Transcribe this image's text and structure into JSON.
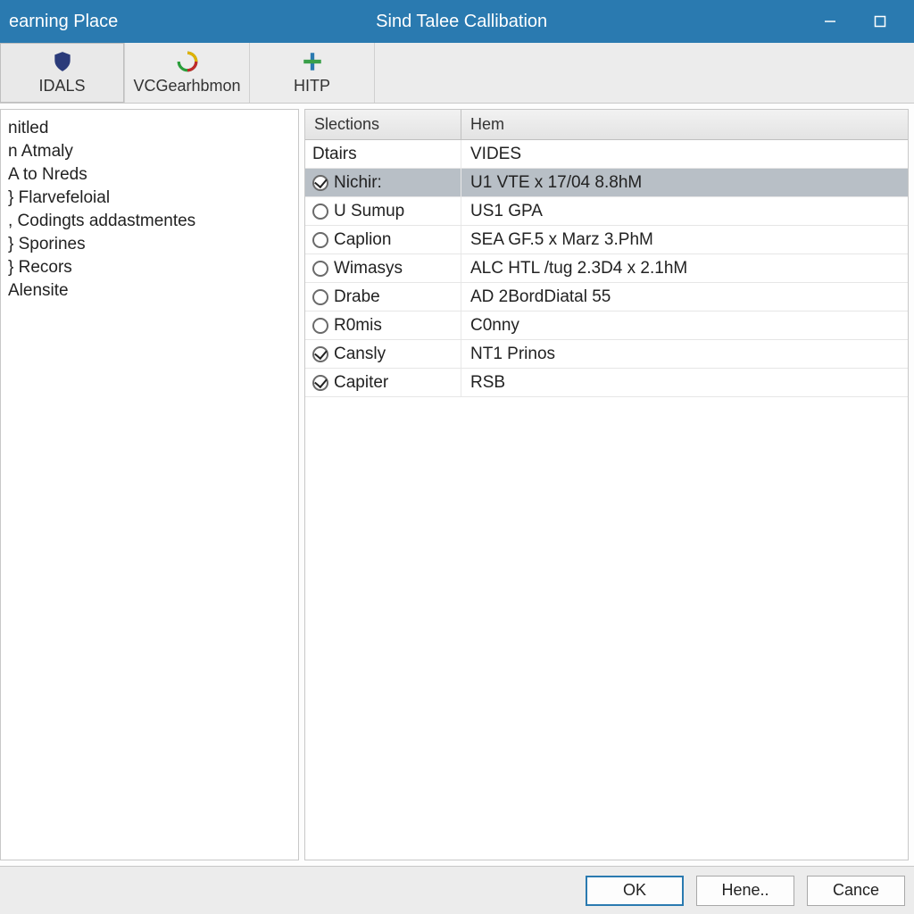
{
  "titlebar": {
    "left": "earning Place",
    "center": "Sind Talee Callibation"
  },
  "toolbar": {
    "tabs": [
      {
        "label": "IDALS",
        "active": true
      },
      {
        "label": "VCGearhbmon",
        "active": false
      },
      {
        "label": "HITP",
        "active": false
      }
    ]
  },
  "sidebar": {
    "items": [
      "nitled",
      "n Atmaly",
      "A to Nreds",
      "} Flarvefeloial",
      ", Codingts addastmentes",
      "} Sporines",
      "} Recors",
      "Alensite"
    ]
  },
  "grid": {
    "headers": {
      "c1": "Slections",
      "c2": "Hem"
    },
    "rows": [
      {
        "sel": "none",
        "c1": "Dtairs",
        "c2": "VIDES",
        "selected": false
      },
      {
        "sel": "checked",
        "c1": "Nichir:",
        "c2": "U1 VTE x 17/04 8.8hM",
        "selected": true
      },
      {
        "sel": "empty",
        "c1": "U Sumup",
        "c2": "US1 GPA",
        "selected": false
      },
      {
        "sel": "empty",
        "c1": "Caplion",
        "c2": "SEA GF.5 x Marz 3.PhM",
        "selected": false
      },
      {
        "sel": "empty",
        "c1": "Wimasys",
        "c2": "ALC HTL /tug 2.3D4 x 2.1hM",
        "selected": false
      },
      {
        "sel": "empty",
        "c1": "Drabe",
        "c2": "AD 2BordDiatal 55",
        "selected": false
      },
      {
        "sel": "empty",
        "c1": "R0mis",
        "c2": "C0nny",
        "selected": false
      },
      {
        "sel": "checked",
        "c1": "Cansly",
        "c2": "NT1 Prinos",
        "selected": false
      },
      {
        "sel": "checked",
        "c1": "Capiter",
        "c2": "RSB",
        "selected": false
      }
    ]
  },
  "footer": {
    "ok": "OK",
    "hene": "Hene..",
    "cancel": "Cance"
  },
  "colors": {
    "titlebar_bg": "#2a7ab0",
    "selected_row": "#b8bfc6",
    "primary_border": "#2a7ab0"
  }
}
